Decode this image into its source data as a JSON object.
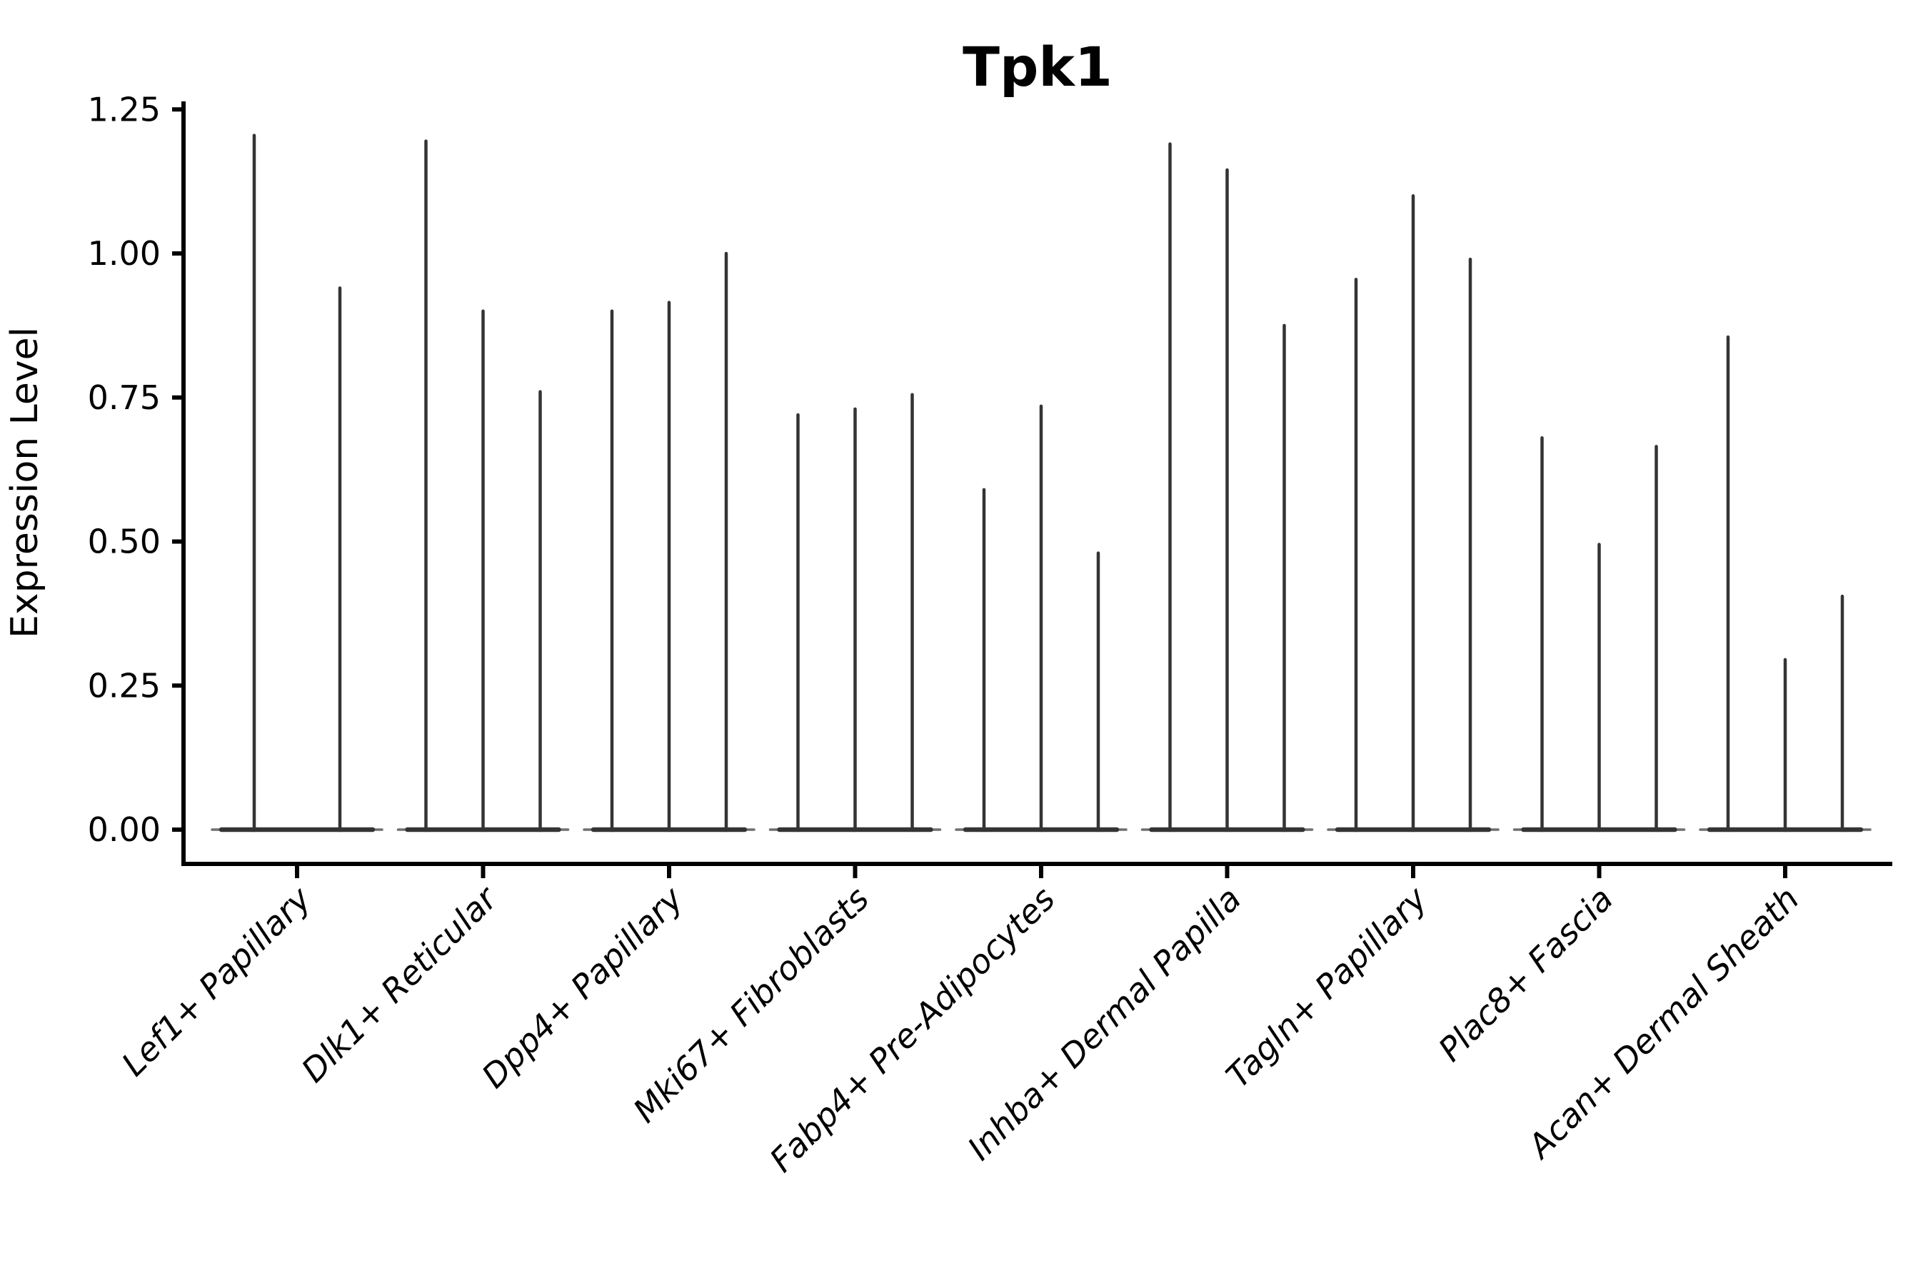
{
  "figure": {
    "title": "Tpk1",
    "y_axis_label": "Expression Level",
    "y_tick_labels": [
      "0.00",
      "0.25",
      "0.50",
      "0.75",
      "1.00",
      "1.25"
    ],
    "colors": {
      "violin": "#343434",
      "violin_taper": "#6f6f6f",
      "axis": "#000000",
      "background": "#ffffff"
    }
  },
  "chart_data": {
    "type": "violin",
    "title": "Tpk1",
    "xlabel": "",
    "ylabel": "Expression Level",
    "ylim": [
      -0.06,
      1.26
    ],
    "y_ticks": [
      0,
      0.25,
      0.5,
      0.75,
      1.0,
      1.25
    ],
    "grid": false,
    "legend": "none",
    "description": "Gene expression violin plot; each cell-type group shows 2-3 thin sub-violins whose mass sits at 0 with a narrow spike rising to the maximum expression value",
    "groups": [
      {
        "category": "Lef1+ Papillary",
        "spike_heights": [
          1.205,
          0.94
        ]
      },
      {
        "category": "Dlk1+ Reticular",
        "spike_heights": [
          1.195,
          0.9,
          0.76
        ]
      },
      {
        "category": "Dpp4+ Papillary",
        "spike_heights": [
          0.9,
          0.915,
          1.0
        ]
      },
      {
        "category": "Mki67+ Fibroblasts",
        "spike_heights": [
          0.72,
          0.73,
          0.755
        ]
      },
      {
        "category": "Fabp4+ Pre-Adipocytes",
        "spike_heights": [
          0.59,
          0.735,
          0.48
        ]
      },
      {
        "category": "Inhba+ Dermal Papilla",
        "spike_heights": [
          1.19,
          1.145,
          0.875
        ]
      },
      {
        "category": "Tagln+ Papillary",
        "spike_heights": [
          0.955,
          1.1,
          0.99
        ]
      },
      {
        "category": "Plac8+ Fascia",
        "spike_heights": [
          0.68,
          0.495,
          0.665
        ]
      },
      {
        "category": "Acan+ Dermal Sheath",
        "spike_heights": [
          0.855,
          0.295,
          0.405
        ]
      }
    ]
  }
}
